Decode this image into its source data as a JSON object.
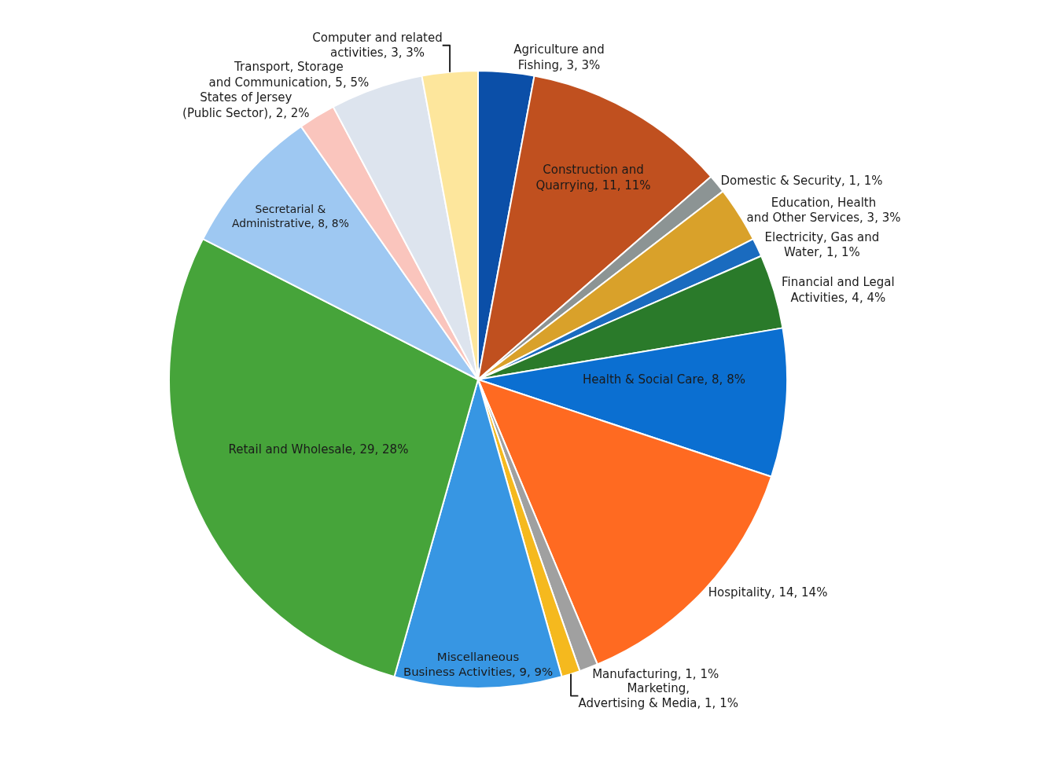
{
  "chart_data": {
    "type": "pie",
    "categories": [
      "Agriculture and Fishing",
      "Construction and Quarrying",
      "Domestic & Security",
      "Education, Health and Other Services",
      "Electricity, Gas and Water",
      "Financial and Legal Activities",
      "Health & Social Care",
      "Hospitality",
      "Manufacturing",
      "Marketing, Advertising & Media",
      "Miscellaneous Business Activities",
      "Retail and Wholesale",
      "Secretarial & Administrative",
      "States of Jersey (Public Sector)",
      "Transport, Storage and Communication",
      "Computer and related activities"
    ],
    "values": [
      3,
      11,
      1,
      3,
      1,
      4,
      8,
      14,
      1,
      1,
      9,
      29,
      8,
      2,
      5,
      3
    ],
    "value_labels": [
      "3, 3%",
      "11, 11%",
      "1, 1%",
      "3, 3%",
      "1, 1%",
      "4, 4%",
      "8, 8%",
      "14, 14%",
      "1, 1%",
      "1, 1%",
      "9, 9%",
      "29, 28%",
      "8, 8%",
      "2, 2%",
      "5, 5%",
      "3, 3%"
    ],
    "colors": [
      "#0b4fa8",
      "#c0501f",
      "#8c9494",
      "#d9a12a",
      "#1a6bbf",
      "#2a7a2a",
      "#0b6fd1",
      "#ff6a21",
      "#a0a0a0",
      "#f5b91e",
      "#3796e3",
      "#46a43a",
      "#9ec8f2",
      "#fac5bd",
      "#dde4ee",
      "#fde69c"
    ],
    "legend": false
  }
}
